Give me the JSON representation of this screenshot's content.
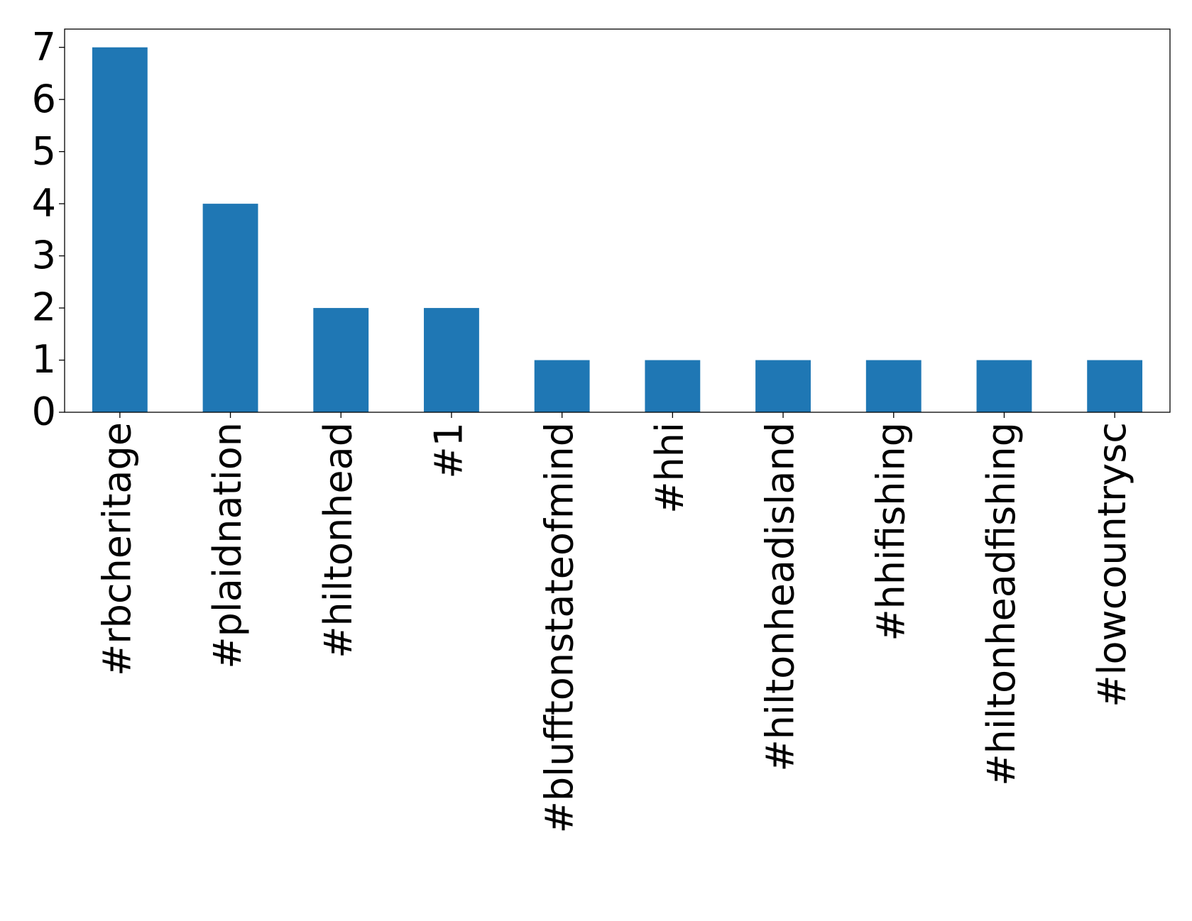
{
  "chart_data": {
    "type": "bar",
    "categories": [
      "#rbcheritage",
      "#plaidnation",
      "#hiltonhead",
      "#1",
      "#blufftonstateofmind",
      "#hhi",
      "#hiltonheadisland",
      "#hhifishing",
      "#hiltonheadfishing",
      "#lowcountrysc"
    ],
    "values": [
      7,
      4,
      2,
      2,
      1,
      1,
      1,
      1,
      1,
      1
    ],
    "color": "#1f77b4",
    "ylim": [
      0,
      7.35
    ],
    "yticks": [
      0,
      1,
      2,
      3,
      4,
      5,
      6,
      7
    ],
    "grid": false
  }
}
